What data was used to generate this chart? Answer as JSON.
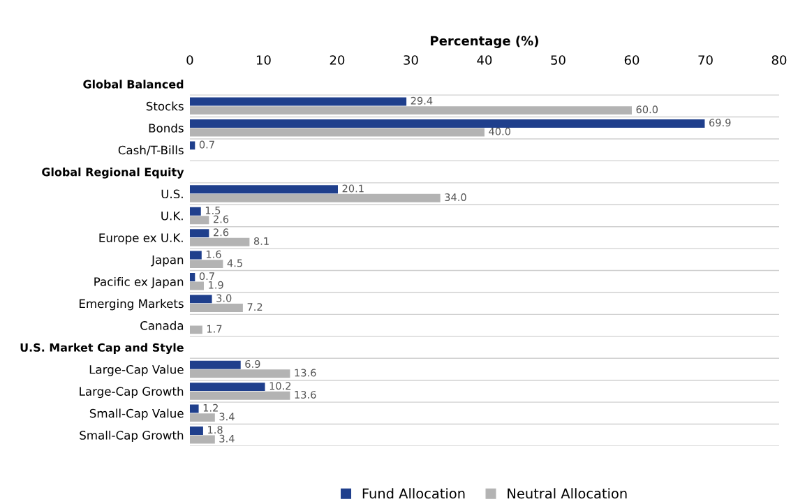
{
  "chart_data": {
    "type": "bar",
    "orientation": "horizontal",
    "xlabel": "Percentage (%)",
    "categories": [
      "Global Balanced",
      "Stocks",
      "Bonds",
      "Cash/T-Bills",
      "Global Regional Equity",
      "U.S.",
      "U.K.",
      "Europe ex U.K.",
      "Japan",
      "Pacific ex Japan",
      "Emerging Markets",
      "Canada",
      "U.S. Market Cap and Style",
      "Large-Cap Value",
      "Large-Cap Growth",
      "Small-Cap Value",
      "Small-Cap Growth"
    ],
    "series": [
      {
        "name": "Fund Allocation",
        "color": "#1f3f8c",
        "values": [
          null,
          29.4,
          69.9,
          0.7,
          null,
          20.1,
          1.5,
          2.6,
          1.6,
          0.7,
          3.0,
          null,
          null,
          6.9,
          10.2,
          1.2,
          1.8
        ],
        "value_labels": [
          null,
          "29.4",
          "69.9",
          "0.7",
          null,
          "20.1",
          "1.5",
          "2.6",
          "1.6",
          "0.7",
          "3.0",
          null,
          null,
          "6.9",
          "10.2",
          "1.2",
          "1.8"
        ]
      },
      {
        "name": "Neutral Allocation",
        "color": "#b3b3b3",
        "values": [
          null,
          60.0,
          40.0,
          null,
          null,
          34.0,
          2.6,
          8.1,
          4.5,
          1.9,
          7.2,
          1.7,
          null,
          13.6,
          13.6,
          3.4,
          3.4
        ],
        "value_labels": [
          null,
          "60.0",
          "40.0",
          null,
          null,
          "34.0",
          "2.6",
          "8.1",
          "4.5",
          "1.9",
          "7.2",
          "1.7",
          null,
          "13.6",
          "13.6",
          "3.4",
          "3.4"
        ]
      }
    ],
    "xlim": [
      0,
      80
    ],
    "xticks": [
      0,
      10,
      20,
      30,
      40,
      50,
      60,
      70,
      80
    ],
    "grid": "y",
    "legend": "bottom"
  }
}
